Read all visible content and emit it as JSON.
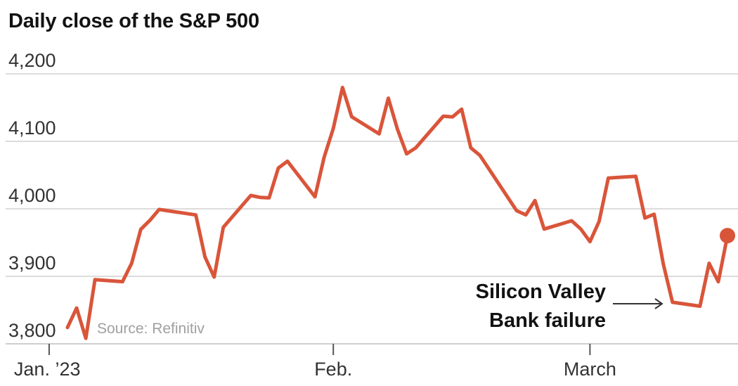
{
  "chart_data": {
    "type": "line",
    "title": "Daily close of the S&P 500",
    "source": "Source: Refinitiv",
    "x_ticks": [
      "Jan. ’23",
      "Feb.",
      "March"
    ],
    "y_ticks": [
      "3,800",
      "3,900",
      "4,000",
      "4,100",
      "4,200"
    ],
    "ylim": [
      3800,
      4200
    ],
    "grid": true,
    "annotation": {
      "lines": [
        "Silicon Valley",
        "Bank failure"
      ],
      "date": "2023-03-10"
    },
    "series": [
      {
        "x": [
          "2023-01-03",
          "2023-01-04",
          "2023-01-05",
          "2023-01-06",
          "2023-01-09",
          "2023-01-10",
          "2023-01-11",
          "2023-01-12",
          "2023-01-13",
          "2023-01-17",
          "2023-01-18",
          "2023-01-19",
          "2023-01-20",
          "2023-01-23",
          "2023-01-24",
          "2023-01-25",
          "2023-01-26",
          "2023-01-27",
          "2023-01-30",
          "2023-01-31",
          "2023-02-01",
          "2023-02-02",
          "2023-02-03",
          "2023-02-06",
          "2023-02-07",
          "2023-02-08",
          "2023-02-09",
          "2023-02-10",
          "2023-02-13",
          "2023-02-14",
          "2023-02-15",
          "2023-02-16",
          "2023-02-17",
          "2023-02-21",
          "2023-02-22",
          "2023-02-23",
          "2023-02-24",
          "2023-02-27",
          "2023-02-28",
          "2023-03-01",
          "2023-03-02",
          "2023-03-03",
          "2023-03-06",
          "2023-03-07",
          "2023-03-08",
          "2023-03-09",
          "2023-03-10",
          "2023-03-13",
          "2023-03-14",
          "2023-03-15",
          "2023-03-16"
        ],
        "values": [
          3824.14,
          3852.97,
          3808.1,
          3895.08,
          3892.09,
          3919.25,
          3969.61,
          3983.17,
          3999.09,
          3990.97,
          3928.86,
          3898.85,
          3972.61,
          4019.81,
          4016.95,
          4016.22,
          4060.43,
          4070.56,
          4017.77,
          4076.6,
          4119.21,
          4179.76,
          4136.48,
          4111.08,
          4164.0,
          4117.86,
          4081.5,
          4090.46,
          4137.29,
          4136.13,
          4147.6,
          4090.41,
          4079.09,
          3997.34,
          3991.05,
          4012.32,
          3970.04,
          3982.24,
          3970.15,
          3951.39,
          3981.35,
          4045.64,
          4048.26,
          3986.37,
          3992.01,
          3918.32,
          3861.59,
          3855.76,
          3919.29,
          3891.93,
          3960.28
        ]
      }
    ]
  }
}
